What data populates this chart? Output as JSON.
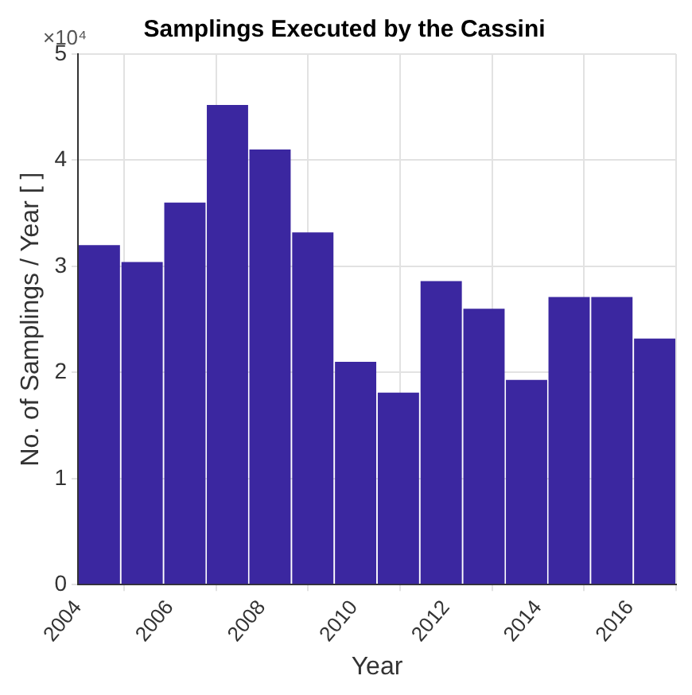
{
  "chart_data": {
    "type": "histogram",
    "title": "Samplings Executed by the Cassini",
    "xlabel": "Year",
    "ylabel": "No. of Samplings / Year [ ]",
    "annotations": [
      "×10⁴"
    ],
    "bins": [
      2004,
      2004.93,
      2005.86,
      2006.79,
      2007.71,
      2008.64,
      2009.57,
      2010.5,
      2011.43,
      2012.36,
      2013.29,
      2014.21,
      2015.14,
      2016.07,
      2017
    ],
    "values": [
      3.2,
      3.04,
      3.6,
      4.52,
      4.1,
      3.32,
      2.1,
      1.81,
      2.86,
      2.6,
      1.93,
      2.71,
      2.71,
      2.32
    ],
    "color": "#3b27a0",
    "xlim": [
      2004,
      2017
    ],
    "xticks": [
      2004,
      2006,
      2008,
      2010,
      2012,
      2014,
      2016
    ],
    "ylim": [
      0,
      5
    ],
    "yticks": [
      0,
      1,
      2,
      3,
      4,
      5
    ],
    "grid": true,
    "legend": false
  }
}
